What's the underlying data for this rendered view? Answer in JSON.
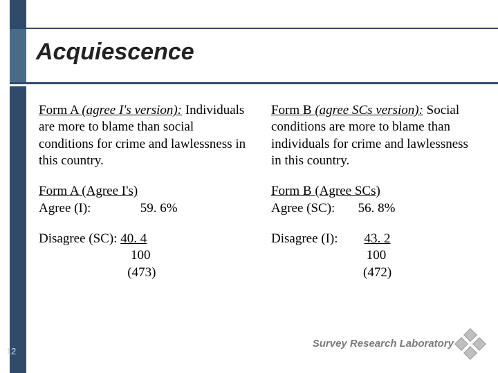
{
  "title": "Acquiescence",
  "left": {
    "heading_label": "Form A ",
    "heading_paren": "(agree I's version):",
    "desc": "Individuals are more to blame than social conditions for crime and lawlessness in this country.",
    "sub_heading": "Form A (Agree I's)",
    "agree_label": "Agree (I):",
    "agree_pct": "59. 6%",
    "disagree_label": "Disagree (SC):",
    "disagree_val": "40. 4",
    "total": "100",
    "n": "(473)"
  },
  "right": {
    "heading_label": "Form B ",
    "heading_paren": "(agree SCs version):",
    "desc": "Social conditions are more to blame than individuals for crime and lawlessness in this country.",
    "sub_heading": "Form B (Agree SCs)",
    "agree_label": "Agree (SC):",
    "agree_pct": "56. 8%",
    "disagree_label": "Disagree (I):",
    "disagree_val": "43. 2",
    "total": "100",
    "n": "(472)"
  },
  "footer": "Survey Research Laboratory",
  "page_number": "12",
  "colors": {
    "dark_blue": "#2f4a6a",
    "mid_blue": "#4a6a8a",
    "footer_gray": "#7a7a7a",
    "deco_gray": "#bfbfbf"
  }
}
